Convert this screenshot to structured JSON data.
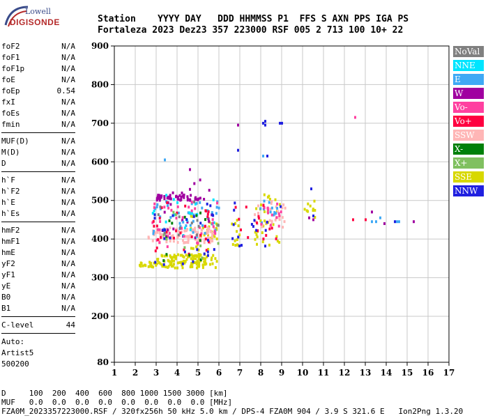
{
  "logo": {
    "top": "Lowell",
    "bottom": "DIGISONDE"
  },
  "header": {
    "line1": "Station    YYYY DAY   DDD HHMMSS P1  FFS S AXN PPS IGA PS",
    "line2": "Fortaleza 2023 Dez23 357 223000 RSF 005 2 713 100 10+ 22"
  },
  "params_group1": [
    {
      "name": "foF2",
      "value": "N/A"
    },
    {
      "name": "foF1",
      "value": "N/A"
    },
    {
      "name": "foF1p",
      "value": "N/A"
    },
    {
      "name": "foE",
      "value": "N/A"
    },
    {
      "name": "foEp",
      "value": "0.54"
    },
    {
      "name": "fxI",
      "value": "N/A"
    },
    {
      "name": "foEs",
      "value": "N/A"
    },
    {
      "name": "fmin",
      "value": "N/A"
    }
  ],
  "params_group2": [
    {
      "name": "MUF(D)",
      "value": "N/A"
    },
    {
      "name": "M(D)",
      "value": "N/A"
    },
    {
      "name": "D",
      "value": "N/A"
    }
  ],
  "params_group3": [
    {
      "name": "h`F",
      "value": "N/A"
    },
    {
      "name": "h`F2",
      "value": "N/A"
    },
    {
      "name": "h`E",
      "value": "N/A"
    },
    {
      "name": "h`Es",
      "value": "N/A"
    }
  ],
  "params_group4": [
    {
      "name": "hmF2",
      "value": "N/A"
    },
    {
      "name": "hmF1",
      "value": "N/A"
    },
    {
      "name": "hmE",
      "value": "N/A"
    },
    {
      "name": "yF2",
      "value": "N/A"
    },
    {
      "name": "yF1",
      "value": "N/A"
    },
    {
      "name": "yE",
      "value": "N/A"
    },
    {
      "name": "B0",
      "value": "N/A"
    },
    {
      "name": "B1",
      "value": "N/A"
    }
  ],
  "clevel": {
    "name": "C-level",
    "value": "44"
  },
  "auto": {
    "line1": "Auto:",
    "line2": "Artist5",
    "line3": "500200"
  },
  "legend": [
    {
      "label": "NoVal",
      "color": "#808080"
    },
    {
      "label": "NNE",
      "color": "#00e5ff"
    },
    {
      "label": "E",
      "color": "#3fa9f5"
    },
    {
      "label": "W",
      "color": "#a000a0"
    },
    {
      "label": "Vo-",
      "color": "#ff40a0"
    },
    {
      "label": "Vo+",
      "color": "#ff0040"
    },
    {
      "label": "SSW",
      "color": "#ffb6b6"
    },
    {
      "label": "X-",
      "color": "#00800a"
    },
    {
      "label": "X+",
      "color": "#80c060"
    },
    {
      "label": "SSE",
      "color": "#d8d800"
    },
    {
      "label": "NNW",
      "color": "#2020e0"
    }
  ],
  "footer": {
    "line1": "D     100  200  400  600  800 1000 1500 3000 [km]",
    "line2": "MUF   0.0  0.0  0.0  0.0  0.0  0.0  0.0  0.0 [MHz]",
    "line3": "FZA0M_2023357223000.RSF / 320fx256h 50 kHz 5.0 km / DPS-4 FZA0M 904 / 3.9 S 321.6 E   Ion2Png 1.3.20"
  },
  "chart_data": {
    "type": "scatter",
    "title": "",
    "xlabel": "",
    "ylabel": "",
    "xlim": [
      1,
      17
    ],
    "ylim": [
      80,
      900
    ],
    "xticks": [
      1,
      2,
      3,
      4,
      5,
      6,
      7,
      8,
      9,
      10,
      11,
      12,
      13,
      14,
      15,
      16,
      17
    ],
    "yticks": [
      80,
      200,
      300,
      400,
      500,
      600,
      700,
      800,
      900
    ],
    "grid": true,
    "clusters": [
      {
        "series": "SSE",
        "x0": 2.1,
        "x1": 3.0,
        "y0": 325,
        "y1": 340,
        "n": 20
      },
      {
        "series": "SSE",
        "x0": 3.0,
        "x1": 5.9,
        "y0": 325,
        "y1": 360,
        "n": 120
      },
      {
        "series": "SSE",
        "x0": 4.6,
        "x1": 5.9,
        "y0": 360,
        "y1": 460,
        "n": 30
      },
      {
        "series": "SSE",
        "x0": 6.6,
        "x1": 7.0,
        "y0": 380,
        "y1": 450,
        "n": 12
      },
      {
        "series": "SSE",
        "x0": 7.7,
        "x1": 9.0,
        "y0": 380,
        "y1": 520,
        "n": 30
      },
      {
        "series": "SSE",
        "x0": 10.0,
        "x1": 10.6,
        "y0": 450,
        "y1": 500,
        "n": 10
      },
      {
        "series": "SSW",
        "x0": 2.6,
        "x1": 5.8,
        "y0": 390,
        "y1": 430,
        "n": 110
      },
      {
        "series": "SSW",
        "x0": 7.7,
        "x1": 9.2,
        "y0": 430,
        "y1": 500,
        "n": 30
      },
      {
        "series": "W",
        "x0": 3.0,
        "x1": 5.2,
        "y0": 500,
        "y1": 515,
        "n": 45
      },
      {
        "series": "W",
        "x0": 3.0,
        "x1": 5.7,
        "y0": 400,
        "y1": 560,
        "n": 25
      },
      {
        "series": "E",
        "x0": 2.8,
        "x1": 6.0,
        "y0": 410,
        "y1": 500,
        "n": 40
      },
      {
        "series": "E",
        "x0": 7.9,
        "x1": 9.1,
        "y0": 440,
        "y1": 500,
        "n": 12
      },
      {
        "series": "NNE",
        "x0": 2.8,
        "x1": 6.0,
        "y0": 400,
        "y1": 520,
        "n": 20
      },
      {
        "series": "Vo-",
        "x0": 2.8,
        "x1": 6.0,
        "y0": 380,
        "y1": 500,
        "n": 35
      },
      {
        "series": "Vo-",
        "x0": 7.8,
        "x1": 9.0,
        "y0": 430,
        "y1": 500,
        "n": 15
      },
      {
        "series": "Vo+",
        "x0": 2.8,
        "x1": 5.6,
        "y0": 360,
        "y1": 500,
        "n": 30
      },
      {
        "series": "Vo+",
        "x0": 6.6,
        "x1": 9.0,
        "y0": 400,
        "y1": 490,
        "n": 15
      },
      {
        "series": "NNW",
        "x0": 2.8,
        "x1": 6.0,
        "y0": 330,
        "y1": 500,
        "n": 25
      },
      {
        "series": "NNW",
        "x0": 6.6,
        "x1": 9.1,
        "y0": 380,
        "y1": 500,
        "n": 15
      },
      {
        "series": "X-",
        "x0": 3.0,
        "x1": 5.5,
        "y0": 340,
        "y1": 470,
        "n": 12
      },
      {
        "series": "X+",
        "x0": 3.0,
        "x1": 6.0,
        "y0": 340,
        "y1": 470,
        "n": 10
      },
      {
        "series": "NoVal",
        "x0": 2.8,
        "x1": 6.0,
        "y0": 400,
        "y1": 500,
        "n": 12
      }
    ],
    "points": [
      {
        "series": "NNW",
        "x": 8.1,
        "y": 700
      },
      {
        "series": "NNW",
        "x": 8.2,
        "y": 705
      },
      {
        "series": "NNW",
        "x": 8.2,
        "y": 695
      },
      {
        "series": "NNW",
        "x": 8.9,
        "y": 700
      },
      {
        "series": "NNW",
        "x": 9.0,
        "y": 700
      },
      {
        "series": "W",
        "x": 6.9,
        "y": 695
      },
      {
        "series": "NNW",
        "x": 6.9,
        "y": 630
      },
      {
        "series": "E",
        "x": 8.1,
        "y": 615
      },
      {
        "series": "NNW",
        "x": 8.3,
        "y": 615
      },
      {
        "series": "E",
        "x": 3.4,
        "y": 605
      },
      {
        "series": "W",
        "x": 4.6,
        "y": 580
      },
      {
        "series": "Vo-",
        "x": 12.5,
        "y": 715
      },
      {
        "series": "W",
        "x": 10.5,
        "y": 450
      },
      {
        "series": "NNW",
        "x": 10.5,
        "y": 460
      },
      {
        "series": "W",
        "x": 10.3,
        "y": 455
      },
      {
        "series": "NNW",
        "x": 10.4,
        "y": 530
      },
      {
        "series": "Vo+",
        "x": 12.4,
        "y": 450
      },
      {
        "series": "Vo+",
        "x": 13.0,
        "y": 450
      },
      {
        "series": "W",
        "x": 13.3,
        "y": 470
      },
      {
        "series": "E",
        "x": 13.3,
        "y": 445
      },
      {
        "series": "E",
        "x": 13.7,
        "y": 455
      },
      {
        "series": "E",
        "x": 13.5,
        "y": 445
      },
      {
        "series": "W",
        "x": 13.9,
        "y": 440
      },
      {
        "series": "E",
        "x": 14.5,
        "y": 445
      },
      {
        "series": "E",
        "x": 14.6,
        "y": 445
      },
      {
        "series": "NNW",
        "x": 14.4,
        "y": 445
      },
      {
        "series": "W",
        "x": 15.3,
        "y": 445
      }
    ]
  }
}
